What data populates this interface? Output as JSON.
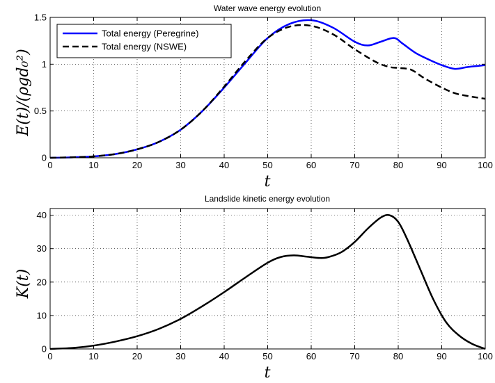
{
  "chart_data": [
    {
      "type": "line",
      "title": "Water wave energy evolution",
      "xlabel": "t",
      "ylabel": "E(t)/(ρgd₀²)",
      "xlim": [
        0,
        100
      ],
      "ylim": [
        0,
        1.5
      ],
      "xticks": [
        0,
        10,
        20,
        30,
        40,
        50,
        60,
        70,
        80,
        90,
        100
      ],
      "yticks": [
        0,
        0.5,
        1,
        1.5
      ],
      "xtick_labels": [
        "0",
        "10",
        "20",
        "30",
        "40",
        "50",
        "60",
        "70",
        "80",
        "90",
        "100"
      ],
      "ytick_labels": [
        "0",
        "0.5",
        "1",
        "1.5"
      ],
      "grid": true,
      "legend": "top-left",
      "series": [
        {
          "name": "Total energy (Peregrine)",
          "color": "#0000ff",
          "style": "solid",
          "x": [
            0,
            5,
            10,
            15,
            20,
            25,
            30,
            35,
            40,
            45,
            50,
            55,
            60,
            65,
            70,
            73,
            76,
            79,
            81,
            84,
            87,
            90,
            93,
            96,
            100
          ],
          "y": [
            0,
            0.005,
            0.015,
            0.04,
            0.09,
            0.17,
            0.3,
            0.5,
            0.75,
            1.02,
            1.28,
            1.43,
            1.47,
            1.39,
            1.24,
            1.2,
            1.24,
            1.28,
            1.22,
            1.12,
            1.05,
            0.99,
            0.95,
            0.97,
            0.99
          ]
        },
        {
          "name": "Total energy (NSWE)",
          "color": "#000000",
          "style": "dashed",
          "x": [
            0,
            5,
            10,
            15,
            20,
            25,
            30,
            35,
            40,
            45,
            50,
            55,
            60,
            65,
            70,
            75,
            78,
            80,
            83,
            86,
            90,
            93,
            96,
            100
          ],
          "y": [
            0,
            0.005,
            0.015,
            0.04,
            0.09,
            0.17,
            0.3,
            0.5,
            0.76,
            1.04,
            1.28,
            1.4,
            1.41,
            1.32,
            1.16,
            1.02,
            0.97,
            0.96,
            0.94,
            0.85,
            0.75,
            0.69,
            0.66,
            0.63
          ]
        }
      ]
    },
    {
      "type": "line",
      "title": "Landslide kinetic energy evolution",
      "xlabel": "t",
      "ylabel": "K(t)",
      "xlim": [
        0,
        100
      ],
      "ylim": [
        0,
        42
      ],
      "xticks": [
        0,
        10,
        20,
        30,
        40,
        50,
        60,
        70,
        80,
        90,
        100
      ],
      "yticks": [
        0,
        10,
        20,
        30,
        40
      ],
      "xtick_labels": [
        "0",
        "10",
        "20",
        "30",
        "40",
        "50",
        "60",
        "70",
        "80",
        "90",
        "100"
      ],
      "ytick_labels": [
        "0",
        "10",
        "20",
        "30",
        "40"
      ],
      "grid": true,
      "series": [
        {
          "color": "#000000",
          "style": "solid",
          "x": [
            0,
            5,
            10,
            15,
            20,
            25,
            30,
            35,
            40,
            45,
            50,
            53,
            56,
            59,
            62,
            64,
            67,
            70,
            73,
            76,
            78,
            80,
            82,
            85,
            88,
            91,
            94,
            97,
            100
          ],
          "y": [
            0,
            0.3,
            1,
            2.2,
            3.8,
            6,
            9,
            12.8,
            17,
            21.5,
            25.8,
            27.5,
            28,
            27.6,
            27.2,
            27.5,
            29,
            32,
            36,
            39.3,
            40,
            38,
            33,
            24,
            15,
            8,
            4,
            1.5,
            0
          ]
        }
      ]
    }
  ]
}
